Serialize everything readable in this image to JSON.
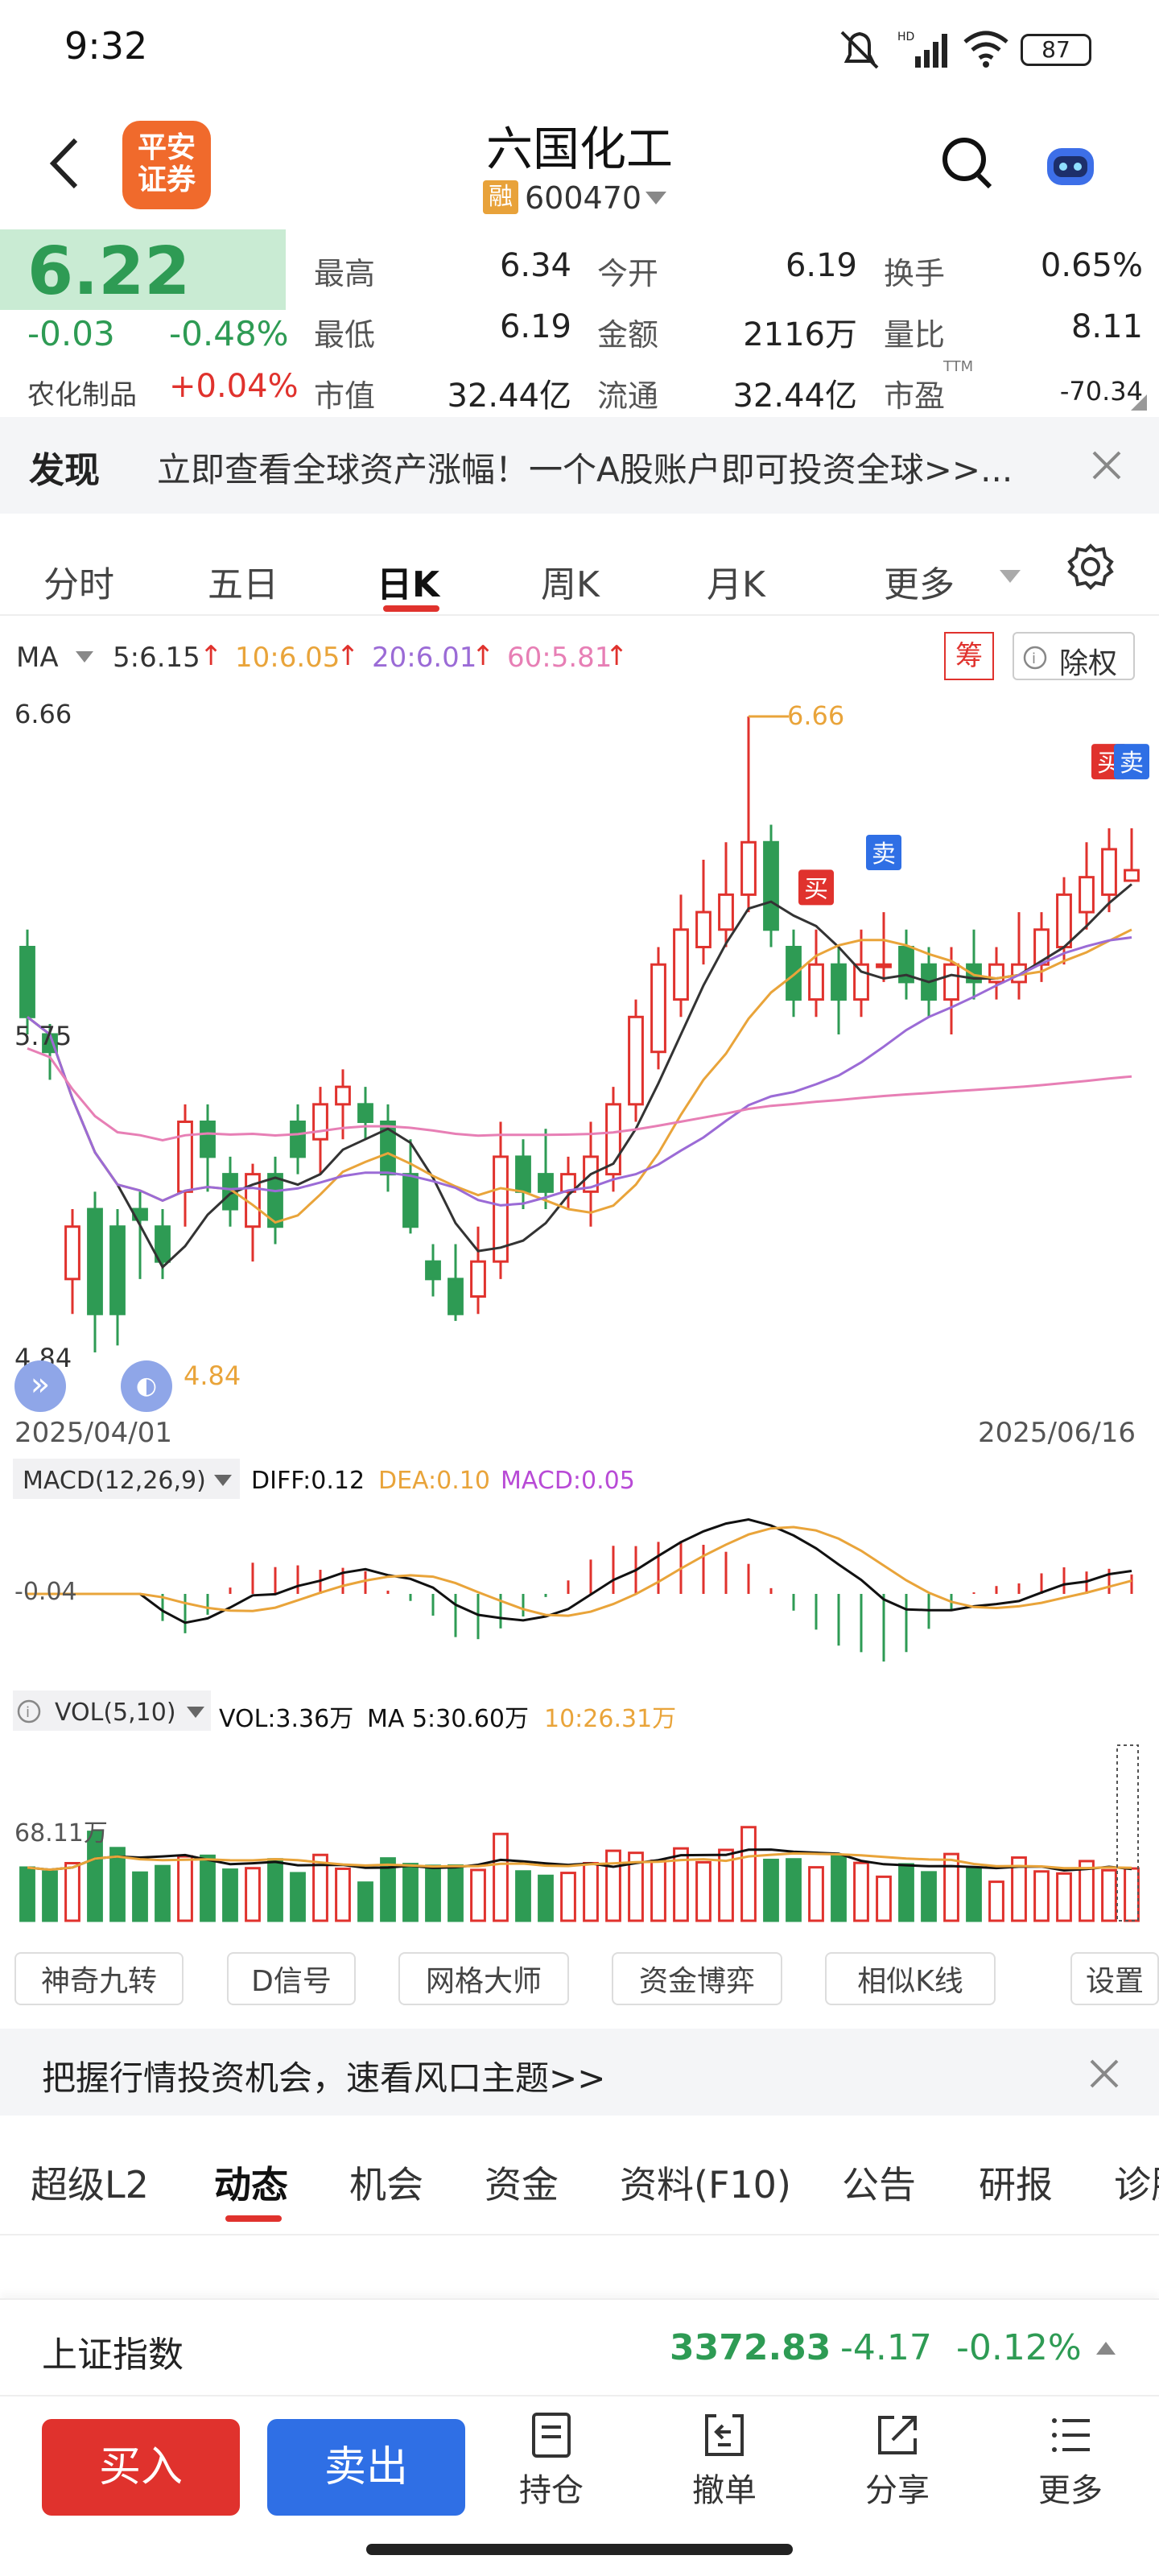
{
  "status_bar": {
    "time": "9:32",
    "battery": "87"
  },
  "header": {
    "logo_line1": "平安",
    "logo_line2": "证券",
    "stock_name": "六国化工",
    "margin_badge": "融",
    "stock_code": "600470"
  },
  "quote": {
    "price": "6.22",
    "change": "-0.03",
    "change_pct": "-0.48%",
    "sector": "农化制品",
    "sector_pct": "+0.04%",
    "high_label": "最高",
    "high": "6.34",
    "open_label": "今开",
    "open": "6.19",
    "turnover_label": "换手",
    "turnover": "0.65%",
    "low_label": "最低",
    "low": "6.19",
    "amount_label": "金额",
    "amount": "2116万",
    "vol_ratio_label": "量比",
    "vol_ratio": "8.11",
    "mcap_label": "市值",
    "mcap": "32.44亿",
    "float_label": "流通",
    "float": "32.44亿",
    "pe_label": "市盈",
    "pe_sup": "TTM",
    "pe": "-70.34"
  },
  "discover": {
    "label": "发现",
    "text": "立即查看全球资产涨幅！一个A股账户即可投资全球>>..."
  },
  "chart_tabs": [
    "分时",
    "五日",
    "日K",
    "周K",
    "月K",
    "更多"
  ],
  "ma_legend": {
    "label": "MA",
    "ma5": "5:6.15",
    "ma10": "10:6.05",
    "ma20": "20:6.01",
    "ma60": "60:5.81",
    "chip": "筹",
    "exright": "除权"
  },
  "chart_labels": {
    "price_top": "6.66",
    "price_mid": "5.75",
    "price_bottom": "4.84",
    "max_marker": "6.66",
    "min_marker": "4.84",
    "date_start": "2025/04/01",
    "date_end": "2025/06/16",
    "buy": "买",
    "sell": "卖"
  },
  "macd_legend": {
    "label": "MACD(12,26,9)",
    "diff": "DIFF:0.12",
    "dea": "DEA:0.10",
    "macd": "MACD:0.05",
    "axis": "-0.04"
  },
  "vol_legend": {
    "label": "VOL(5,10)",
    "vol": "VOL:3.36万",
    "ma5": "MA 5:30.60万",
    "ma10": "10:26.31万",
    "axis": "68.11万"
  },
  "tools": [
    "神奇九转",
    "D信号",
    "网格大师",
    "资金博弈",
    "相似K线",
    "设置"
  ],
  "promo": {
    "text": "把握行情投资机会，速看风口主题>>"
  },
  "news_tabs": [
    "超级L2",
    "动态",
    "机会",
    "资金",
    "资料(F10)",
    "公告",
    "研报",
    "诊股"
  ],
  "index_bar": {
    "name": "上证指数",
    "value": "3372.83",
    "change": "-4.17",
    "change_pct": "-0.12%"
  },
  "bottom_nav": {
    "buy": "买入",
    "sell": "卖出",
    "position": "持仓",
    "cancel": "撤单",
    "share": "分享",
    "more": "更多"
  },
  "colors": {
    "up": "#e0322d",
    "down": "#2e9b54",
    "buy_button": "#e0322d",
    "sell_button": "#2f6fe5",
    "ma5": "#333333",
    "ma10": "#e9a43a",
    "ma20": "#9b6bd6",
    "ma60": "#e77fb5"
  },
  "chart_data": {
    "type": "candlestick",
    "y_range": [
      4.84,
      6.66
    ],
    "date_range": [
      "2025/04/01",
      "2025/06/16"
    ],
    "candles": [
      [
        6.0,
        5.8,
        6.05,
        5.75
      ],
      [
        5.75,
        5.7,
        5.78,
        5.62
      ],
      [
        5.05,
        5.2,
        5.25,
        4.95
      ],
      [
        5.25,
        4.95,
        5.3,
        4.84
      ],
      [
        5.2,
        4.95,
        5.25,
        4.86
      ],
      [
        5.25,
        5.22,
        5.3,
        5.05
      ],
      [
        5.2,
        5.1,
        5.25,
        5.05
      ],
      [
        5.3,
        5.5,
        5.55,
        5.2
      ],
      [
        5.5,
        5.4,
        5.55,
        5.3
      ],
      [
        5.35,
        5.25,
        5.4,
        5.2
      ],
      [
        5.2,
        5.35,
        5.38,
        5.1
      ],
      [
        5.35,
        5.2,
        5.4,
        5.15
      ],
      [
        5.5,
        5.4,
        5.55,
        5.35
      ],
      [
        5.45,
        5.55,
        5.6,
        5.35
      ],
      [
        5.55,
        5.6,
        5.65,
        5.45
      ],
      [
        5.55,
        5.5,
        5.6,
        5.45
      ],
      [
        5.5,
        5.35,
        5.55,
        5.3
      ],
      [
        5.35,
        5.2,
        5.45,
        5.18
      ],
      [
        5.1,
        5.05,
        5.15,
        5.0
      ],
      [
        5.05,
        4.95,
        5.15,
        4.93
      ],
      [
        5.0,
        5.1,
        5.2,
        4.95
      ],
      [
        5.1,
        5.4,
        5.5,
        5.05
      ],
      [
        5.4,
        5.3,
        5.45,
        5.25
      ],
      [
        5.35,
        5.3,
        5.48,
        5.25
      ],
      [
        5.3,
        5.35,
        5.4,
        5.25
      ],
      [
        5.3,
        5.4,
        5.5,
        5.2
      ],
      [
        5.35,
        5.55,
        5.6,
        5.3
      ],
      [
        5.55,
        5.8,
        5.85,
        5.5
      ],
      [
        5.7,
        5.95,
        6.0,
        5.65
      ],
      [
        5.85,
        6.05,
        6.15,
        5.8
      ],
      [
        6.0,
        6.1,
        6.25,
        5.95
      ],
      [
        6.05,
        6.15,
        6.3,
        6.0
      ],
      [
        6.15,
        6.3,
        6.66,
        6.1
      ],
      [
        6.3,
        6.05,
        6.35,
        6.0
      ],
      [
        6.0,
        5.85,
        6.05,
        5.8
      ],
      [
        5.85,
        5.95,
        6.05,
        5.8
      ],
      [
        5.95,
        5.85,
        6.0,
        5.75
      ],
      [
        5.85,
        5.95,
        6.05,
        5.8
      ],
      [
        5.95,
        5.95,
        6.1,
        5.9
      ],
      [
        6.0,
        5.9,
        6.05,
        5.85
      ],
      [
        5.95,
        5.85,
        6.0,
        5.8
      ],
      [
        5.85,
        5.95,
        6.0,
        5.75
      ],
      [
        5.95,
        5.9,
        6.05,
        5.85
      ],
      [
        5.9,
        5.95,
        6.0,
        5.85
      ],
      [
        5.9,
        5.95,
        6.1,
        5.85
      ],
      [
        5.95,
        6.05,
        6.1,
        5.9
      ],
      [
        6.0,
        6.15,
        6.2,
        5.95
      ],
      [
        6.1,
        6.2,
        6.3,
        6.05
      ],
      [
        6.15,
        6.28,
        6.34,
        6.1
      ],
      [
        6.19,
        6.22,
        6.34,
        6.19
      ]
    ]
  }
}
